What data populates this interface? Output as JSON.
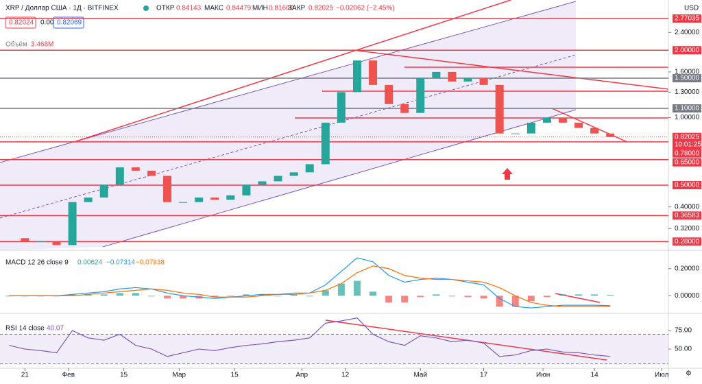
{
  "header": {
    "symbol": "XRP / Доллар США · 1Д · BITFINEX",
    "open_label": "ОТКР",
    "open": "0.84143",
    "high_label": "МАКС",
    "high": "0.84479",
    "low_label": "МИН",
    "low": "0.81600",
    "close_label": "ЗАКР",
    "close": "0.82025",
    "change": "−0.02062 (−2.45%)",
    "bid": "0.82024",
    "spread": "0.00045",
    "ask": "0.82069",
    "volume_label": "Объём",
    "volume": "3.468M",
    "currency": "USD",
    "countdown": "10:01:25"
  },
  "chart_data": [
    {
      "type": "candlestick",
      "log": true,
      "ylim": [
        0.256,
        3.35
      ],
      "up_color": "#26a69a",
      "down_color": "#ef5350",
      "xlim": [
        14.7,
        183.7
      ],
      "xticks": [
        {
          "value": 21,
          "label": "21"
        },
        {
          "value": 32,
          "label": "Фев"
        },
        {
          "value": 46,
          "label": "15"
        },
        {
          "value": 60,
          "label": "Мар"
        },
        {
          "value": 74,
          "label": "15"
        },
        {
          "value": 91,
          "label": "Апр"
        },
        {
          "value": 102,
          "label": "12"
        },
        {
          "value": 121,
          "label": "Май"
        },
        {
          "value": 137,
          "label": "17"
        },
        {
          "value": 152,
          "label": "Июн"
        },
        {
          "value": 165,
          "label": "14"
        },
        {
          "value": 182,
          "label": "Июл"
        }
      ],
      "yticks": [
        {
          "value": 2.4,
          "label": "2.40000"
        },
        {
          "value": 1.6,
          "label": "1.60000"
        },
        {
          "value": 1.3,
          "label": "1.30000"
        },
        {
          "value": 1,
          "label": "1.00000"
        },
        {
          "value": 0.4,
          "label": "0.40000"
        },
        {
          "value": 0.32,
          "label": "0.32000"
        }
      ],
      "levels": [
        {
          "value": 2.77035,
          "label": "2.77035",
          "color": "#f23645"
        },
        {
          "value": 2,
          "label": "2.00000",
          "color": "#f23645"
        },
        {
          "value": 1.5,
          "label": "1.50000",
          "color": "#787b86"
        },
        {
          "value": 1.1,
          "label": "1.10000",
          "color": "#787b86"
        },
        {
          "value": 0.82025,
          "label": "0.82025",
          "color": "#f23645"
        },
        {
          "value": 0.78,
          "label": "0.78000",
          "color": "#f23645"
        },
        {
          "value": 0.65,
          "label": "0.65000",
          "color": "#f23645"
        },
        {
          "value": 0.5,
          "label": "0.50000",
          "color": "#f23645"
        },
        {
          "value": 0.36583,
          "label": "0.36583",
          "color": "#f23645"
        },
        {
          "value": 0.28,
          "label": "0.28000",
          "color": "#f23645"
        }
      ],
      "x": [
        17,
        21,
        25,
        29,
        33,
        37,
        41,
        45,
        49,
        53,
        57,
        61,
        65,
        69,
        73,
        77,
        81,
        85,
        89,
        93,
        97,
        101,
        105,
        109,
        113,
        117,
        121,
        125,
        129,
        133,
        137,
        141,
        145,
        149,
        153,
        157,
        161,
        165,
        169
      ],
      "values": [
        0.29,
        0.28,
        0.28,
        0.27,
        0.42,
        0.44,
        0.5,
        0.6,
        0.58,
        0.55,
        0.42,
        0.42,
        0.44,
        0.43,
        0.45,
        0.5,
        0.52,
        0.55,
        0.57,
        0.62,
        0.95,
        1.3,
        1.8,
        1.4,
        1.15,
        1.05,
        1.5,
        1.6,
        1.45,
        1.5,
        1.4,
        0.85,
        0.85,
        0.95,
        1.0,
        0.95,
        0.9,
        0.85,
        0.82
      ]
    },
    {
      "type": "macd",
      "title": "MACD 12 26 close 9",
      "hist_label": "0.00624",
      "hist_color": "#26a69a",
      "ylim": [
        -0.12,
        0.3
      ],
      "yticks": [
        {
          "value": 0.2,
          "label": "0.20000"
        },
        {
          "value": 0,
          "label": "0.00000"
        }
      ],
      "series": [
        {
          "name": "−0.07314",
          "color": "#2196f3",
          "values": [
            0,
            0,
            0,
            0,
            0.01,
            0.02,
            0.03,
            0.05,
            0.06,
            0.05,
            0.02,
            0,
            -0.01,
            -0.02,
            -0.01,
            0,
            0.01,
            0.01,
            0.02,
            0.02,
            0.08,
            0.18,
            0.28,
            0.25,
            0.15,
            0.1,
            0.12,
            0.13,
            0.12,
            0.1,
            0.08,
            -0.02,
            -0.08,
            -0.09,
            -0.08,
            -0.07,
            -0.07,
            -0.07,
            -0.073
          ]
        },
        {
          "name": "−0.07938",
          "color": "#ff6d00",
          "values": [
            0,
            0,
            0,
            0,
            0,
            0.01,
            0.02,
            0.03,
            0.04,
            0.05,
            0.04,
            0.02,
            0.01,
            -0.01,
            -0.01,
            -0.01,
            0,
            0.01,
            0.01,
            0.02,
            0.04,
            0.09,
            0.17,
            0.22,
            0.2,
            0.15,
            0.13,
            0.12,
            0.12,
            0.11,
            0.1,
            0.06,
            0,
            -0.05,
            -0.07,
            -0.08,
            -0.08,
            -0.08,
            -0.079
          ]
        }
      ]
    },
    {
      "type": "line",
      "title": "RSI 14 close",
      "value_label": "40.07",
      "color": "#7e57c2",
      "ylim": [
        26,
        95.4
      ],
      "band": [
        30,
        70
      ],
      "yticks": [
        {
          "value": 75,
          "label": "75.00"
        },
        {
          "value": 50,
          "label": "50.00"
        }
      ],
      "values": [
        55,
        50,
        48,
        45,
        75,
        65,
        62,
        70,
        55,
        50,
        40,
        45,
        50,
        48,
        52,
        55,
        57,
        60,
        62,
        65,
        85,
        88,
        92,
        70,
        60,
        55,
        68,
        65,
        60,
        62,
        58,
        40,
        42,
        48,
        50,
        46,
        45,
        42,
        40.07
      ]
    }
  ]
}
